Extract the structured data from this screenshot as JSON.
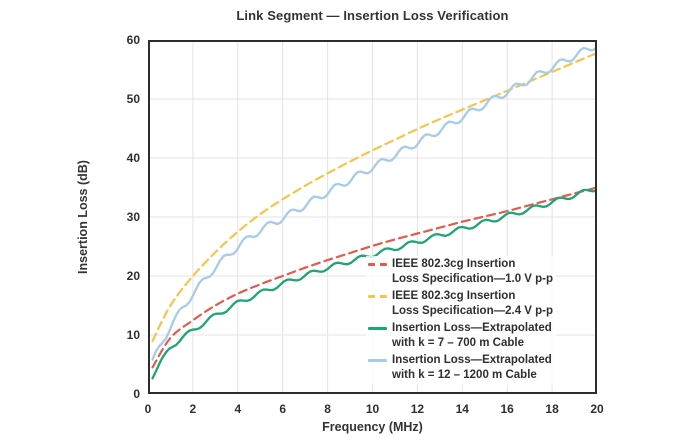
{
  "chart_data": {
    "type": "line",
    "title": "Link Segment — Insertion Loss Verification",
    "xlabel": "Frequency (MHz)",
    "ylabel": "Insertion Loss (dB)",
    "xlim": [
      0,
      20
    ],
    "ylim": [
      0,
      60
    ],
    "xticks": [
      0,
      2,
      4,
      6,
      8,
      10,
      12,
      14,
      16,
      18,
      20
    ],
    "yticks": [
      0,
      10,
      20,
      30,
      40,
      50,
      60
    ],
    "grid": true,
    "legend_position": "inside-bottom-right",
    "x": [
      0.2,
      1,
      2,
      3,
      4,
      5,
      6,
      7,
      8,
      9,
      10,
      11,
      12,
      13,
      14,
      15,
      16,
      17,
      18,
      19,
      20
    ],
    "series": [
      {
        "name": "IEEE 802.3cg Insertion Loss Specification—1.0 V p-p",
        "legend_lines": [
          "IEEE 802.3cg Insertion",
          "Loss Specification—1.0 V p-p"
        ],
        "color": "#e15b4e",
        "style": "dashed",
        "y": [
          4.5,
          9.5,
          12.5,
          15.0,
          17.0,
          18.6,
          20.0,
          21.4,
          22.7,
          23.9,
          25.1,
          26.2,
          27.2,
          28.2,
          29.2,
          30.1,
          31.0,
          32.0,
          33.0,
          34.0,
          35.0
        ]
      },
      {
        "name": "IEEE 802.3cg Insertion Loss Specification—2.4 V p-p",
        "legend_lines": [
          "IEEE 802.3cg Insertion",
          "Loss Specification—2.4 V p-p"
        ],
        "color": "#f5c54b",
        "style": "dashed",
        "y": [
          9.0,
          15.0,
          20.0,
          24.0,
          27.5,
          30.5,
          33.0,
          35.3,
          37.4,
          39.4,
          41.3,
          43.1,
          44.9,
          46.6,
          48.2,
          49.8,
          51.4,
          53.0,
          54.6,
          56.2,
          57.8
        ]
      },
      {
        "name": "Insertion Loss—Extrapolated with k = 7 – 700 m Cable",
        "legend_lines": [
          "Insertion Loss—Extrapolated",
          "with k = 7 – 700 m Cable"
        ],
        "color": "#1fa476",
        "style": "solid",
        "ripple": {
          "amplitude": 0.4,
          "period": 1.1,
          "phase": 0.4
        },
        "y": [
          3.0,
          8.0,
          10.8,
          13.3,
          15.4,
          17.1,
          18.7,
          20.1,
          21.4,
          22.5,
          23.6,
          24.7,
          25.8,
          26.9,
          28.0,
          29.1,
          30.2,
          31.3,
          32.5,
          33.7,
          34.9
        ]
      },
      {
        "name": "Insertion Loss—Extrapolated with k = 12 – 1200 m Cable",
        "legend_lines": [
          "Insertion Loss—Extrapolated",
          "with k = 12 – 1200 m Cable"
        ],
        "color": "#a6cce8",
        "style": "solid",
        "ripple": {
          "amplitude": 0.6,
          "period": 1.0,
          "phase": 0.1
        },
        "y": [
          5.5,
          11.5,
          17.0,
          21.5,
          25.0,
          27.8,
          29.8,
          32.0,
          34.2,
          36.3,
          38.4,
          40.5,
          42.6,
          44.7,
          46.9,
          49.1,
          51.2,
          53.3,
          55.4,
          57.3,
          59.2
        ]
      }
    ],
    "colors": {
      "text": "#333333",
      "grid": "#e3e3e3",
      "border": "#2d2d2d",
      "background": "#ffffff"
    }
  }
}
